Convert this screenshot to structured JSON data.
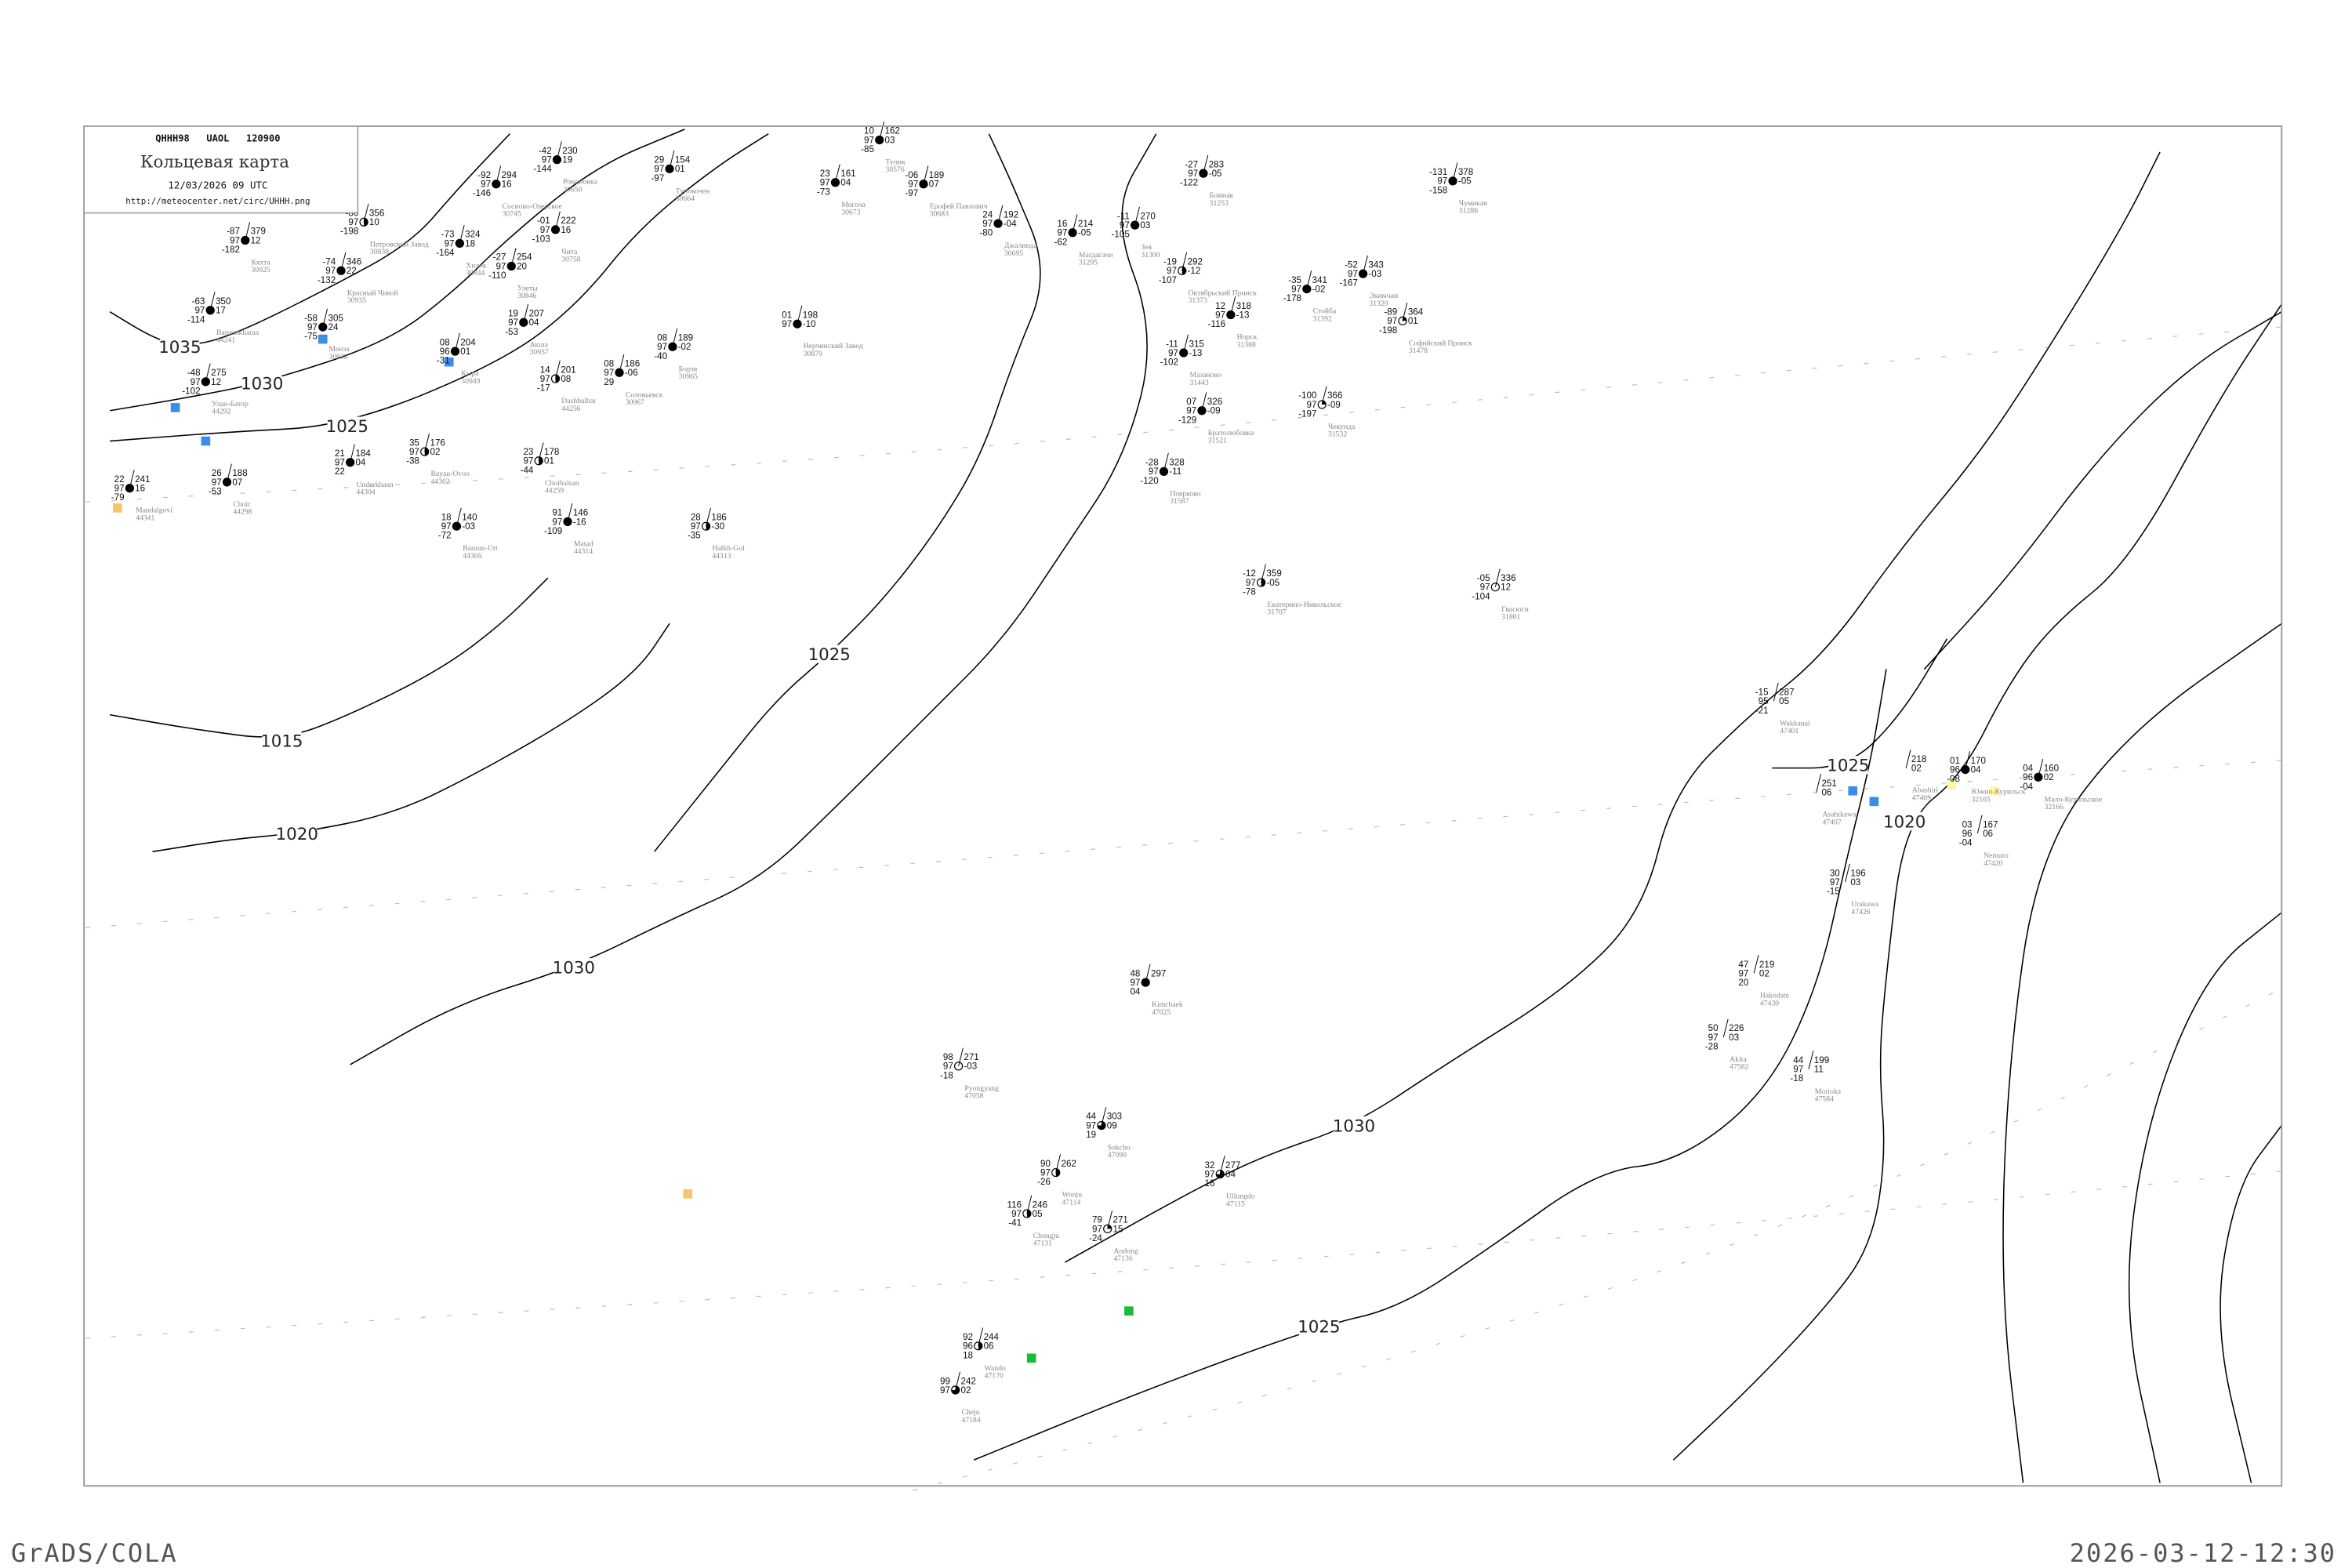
{
  "header": {
    "code": "QHHH98   UAOL   120900",
    "title": "Кольцевая карта",
    "datetime": "12/03/2026 09 UTC",
    "url": "http://meteocenter.net/circ/UHHH.png"
  },
  "footer": {
    "left": "GrADS/COLA",
    "right": "2026-03-12-12:30"
  },
  "colors": {
    "isobar": "#000000",
    "frame": "#999999",
    "station_name": "#888888",
    "snow_marker": "#3b8ee8",
    "yellow_marker": "#f7c46b",
    "pale_yellow_marker": "#fff7a0",
    "green_marker": "#1dbb3a"
  },
  "isobars": [
    {
      "label": "1035"
    },
    {
      "label": "1030"
    },
    {
      "label": "1025"
    },
    {
      "label": "1015"
    },
    {
      "label": "1020"
    },
    {
      "label": "1025"
    },
    {
      "label": "1030"
    },
    {
      "label": "1030"
    },
    {
      "label": "1025"
    },
    {
      "label": "1025"
    },
    {
      "label": "1020"
    },
    {
      "label": "1020"
    },
    {
      "label": ""
    },
    {
      "label": ""
    },
    {
      "label": ""
    }
  ],
  "stations": [
    {
      "name": "Кяхта",
      "id": "30925",
      "t": "-87",
      "vis": "97",
      "td": "-182",
      "p": "379",
      "tend": "12",
      "cover": 1
    },
    {
      "name": "Петровский Завод",
      "id": "30838",
      "t": "-86",
      "vis": "97",
      "td": "-198",
      "p": "356",
      "tend": "10",
      "cover": 0.5
    },
    {
      "name": "Хилок",
      "id": "30844",
      "t": "-73",
      "vis": "97",
      "td": "-164",
      "p": "324",
      "tend": "18",
      "cover": 1
    },
    {
      "name": "Сосново-Озерское",
      "id": "30745",
      "t": "-92",
      "vis": "97",
      "td": "-146",
      "p": "294",
      "tend": "16",
      "cover": 1
    },
    {
      "name": "Романовка",
      "id": "30650",
      "t": "-42",
      "vis": "97",
      "td": "-144",
      "p": "230",
      "tend": "19",
      "cover": 1
    },
    {
      "name": "Тупокочен",
      "id": "30664",
      "t": "29",
      "vis": "97",
      "td": "-97",
      "p": "154",
      "tend": "01",
      "cover": 1
    },
    {
      "name": "Чита",
      "id": "30758",
      "t": "-01",
      "vis": "97",
      "td": "-103",
      "p": "222",
      "tend": "16",
      "cover": 1
    },
    {
      "name": "Улеты",
      "id": "30846",
      "t": "-27",
      "vis": "97",
      "td": "-110",
      "p": "254",
      "tend": "20",
      "cover": 1
    },
    {
      "name": "Красный Чикой",
      "id": "30935",
      "t": "-74",
      "vis": "97",
      "td": "-132",
      "p": "346",
      "tend": "22",
      "cover": 1
    },
    {
      "name": "Baruunkharaa",
      "id": "44241",
      "t": "-63",
      "vis": "97",
      "td": "-114",
      "p": "350",
      "tend": "17",
      "cover": 1
    },
    {
      "name": "Менза",
      "id": "30938",
      "t": "-58",
      "vis": "97",
      "td": "-75",
      "p": "305",
      "tend": "24",
      "cover": 1
    },
    {
      "name": "Улан-Батор",
      "id": "44292",
      "t": "-48",
      "vis": "97",
      "td": "-102",
      "p": "275",
      "tend": "12",
      "cover": 1
    },
    {
      "name": "Кыра",
      "id": "30949",
      "t": "08",
      "vis": "96",
      "td": "-31",
      "p": "204",
      "tend": "01",
      "cover": 1
    },
    {
      "name": "Акша",
      "id": "30957",
      "t": "19",
      "vis": "97",
      "td": "-53",
      "p": "207",
      "tend": "04",
      "cover": 1
    },
    {
      "name": "Dashbalbar",
      "id": "44256",
      "t": "14",
      "vis": "97",
      "td": "-17",
      "p": "201",
      "tend": "08",
      "cover": 0.5
    },
    {
      "name": "Соловьевск",
      "id": "30967",
      "t": "08",
      "vis": "97",
      "td": "29",
      "p": "186",
      "tend": "-06",
      "cover": 1
    },
    {
      "name": "Борзя",
      "id": "30965",
      "t": "08",
      "vis": "97",
      "td": "-40",
      "p": "189",
      "tend": "-02",
      "cover": 1
    },
    {
      "name": "Mandalgovi",
      "id": "44341",
      "t": "22",
      "vis": "97",
      "td": "-79",
      "p": "241",
      "tend": "16",
      "cover": 1
    },
    {
      "name": "Choir",
      "id": "44298",
      "t": "26",
      "vis": "97",
      "td": "-53",
      "p": "188",
      "tend": "07",
      "cover": 1
    },
    {
      "name": "Underkhaan",
      "id": "44304",
      "t": "21",
      "vis": "97",
      "td": "22",
      "p": "184",
      "tend": "04",
      "cover": 1
    },
    {
      "name": "Bayan-Ovoo",
      "id": "44302",
      "t": "35",
      "vis": "97",
      "td": "-38",
      "p": "176",
      "tend": "02",
      "cover": 0.5
    },
    {
      "name": "Choibalsan",
      "id": "44259",
      "t": "23",
      "vis": "97",
      "td": "-44",
      "p": "178",
      "tend": "01",
      "cover": 0.5
    },
    {
      "name": "Baruun-Urt",
      "id": "44305",
      "t": "18",
      "vis": "97",
      "td": "-72",
      "p": "140",
      "tend": "-03",
      "cover": 1
    },
    {
      "name": "Matad",
      "id": "44314",
      "t": "91",
      "vis": "97",
      "td": "-109",
      "p": "146",
      "tend": "-16",
      "cover": 1
    },
    {
      "name": "Halkh-Gol",
      "id": "44313",
      "t": "28",
      "vis": "97",
      "td": "-35",
      "p": "186",
      "tend": "-30",
      "cover": 0.5
    },
    {
      "name": "Тупик",
      "id": "30576",
      "t": "10",
      "vis": "97",
      "td": "-85",
      "p": "162",
      "tend": "03",
      "cover": 1
    },
    {
      "name": "Могоча",
      "id": "30673",
      "t": "23",
      "vis": "97",
      "td": "-73",
      "p": "161",
      "tend": "04",
      "cover": 1
    },
    {
      "name": "Ерофей Павлович",
      "id": "30683",
      "t": "-06",
      "vis": "97",
      "td": "-97",
      "p": "189",
      "tend": "07",
      "cover": 1
    },
    {
      "name": "Джалинда",
      "id": "30695",
      "t": "24",
      "vis": "97",
      "td": "-80",
      "p": "192",
      "tend": "-04",
      "cover": 1
    },
    {
      "name": "Магдагачи",
      "id": "31295",
      "t": "16",
      "vis": "97",
      "td": "-62",
      "p": "214",
      "tend": "-05",
      "cover": 1
    },
    {
      "name": "Зея",
      "id": "31300",
      "t": "-11",
      "vis": "97",
      "td": "-105",
      "p": "270",
      "tend": "03",
      "cover": 1
    },
    {
      "name": "Бомнак",
      "id": "31253",
      "t": "-27",
      "vis": "97",
      "td": "-122",
      "p": "283",
      "tend": "-05",
      "cover": 1
    },
    {
      "name": "Октябрьский Прииск",
      "id": "31373",
      "t": "-19",
      "vis": "97",
      "td": "-107",
      "p": "292",
      "tend": "-12",
      "cover": 0.5
    },
    {
      "name": "Норск",
      "id": "31388",
      "t": "12",
      "vis": "97",
      "td": "-116",
      "p": "318",
      "tend": "-13",
      "cover": 1
    },
    {
      "name": "Стойба",
      "id": "31392",
      "t": "-35",
      "vis": "97",
      "td": "-178",
      "p": "341",
      "tend": "-02",
      "cover": 1
    },
    {
      "name": "Экимчан",
      "id": "31329",
      "t": "-52",
      "vis": "97",
      "td": "-167",
      "p": "343",
      "tend": "-03",
      "cover": 1
    },
    {
      "name": "Чумикан",
      "id": "31286",
      "t": "-131",
      "vis": "97",
      "td": "-158",
      "p": "378",
      "tend": "-05",
      "cover": 1
    },
    {
      "name": "Софийский Прииск",
      "id": "31478",
      "t": "-89",
      "vis": "97",
      "td": "-198",
      "p": "364",
      "tend": "01",
      "cover": 0.25
    },
    {
      "name": "Мазаново",
      "id": "31443",
      "t": "-11",
      "vis": "97",
      "td": "-102",
      "p": "315",
      "tend": "-13",
      "cover": 1
    },
    {
      "name": "Братолюбовка",
      "id": "31521",
      "t": "07",
      "vis": "97",
      "td": "-129",
      "p": "326",
      "tend": "-09",
      "cover": 1
    },
    {
      "name": "Поярково",
      "id": "31587",
      "t": "-28",
      "vis": "97",
      "td": "-120",
      "p": "328",
      "tend": "-11",
      "cover": 1
    },
    {
      "name": "Чекунда",
      "id": "31532",
      "t": "-100",
      "vis": "97",
      "td": "-197",
      "p": "366",
      "tend": "-09",
      "cover": 0.25
    },
    {
      "name": "Екатерино-Никольское",
      "id": "31707",
      "t": "-12",
      "vis": "97",
      "td": "-78",
      "p": "359",
      "tend": "-05",
      "cover": 0.5
    },
    {
      "name": "Гвасюги",
      "id": "31801",
      "t": "-05",
      "vis": "97",
      "td": "-104",
      "p": "336",
      "tend": "12",
      "cover": 0
    },
    {
      "name": "Нерчинский Завод",
      "id": "30879",
      "t": "01",
      "vis": "97",
      "td": "",
      "p": "198",
      "tend": "-10",
      "cover": 1
    },
    {
      "name": "Kimchaek",
      "id": "47025",
      "t": "48",
      "vis": "97",
      "td": "04",
      "p": "297",
      "tend": "",
      "cover": 1
    },
    {
      "name": "Ullungdo",
      "id": "47115",
      "t": "32",
      "vis": "97",
      "td": "16",
      "p": "277",
      "tend": "04",
      "cover": 0.75
    },
    {
      "name": "Pyongyang",
      "id": "47058",
      "t": "98",
      "vis": "97",
      "td": "-18",
      "p": "271",
      "tend": "-03",
      "cover": 0
    },
    {
      "name": "Chongju",
      "id": "47131",
      "t": "116",
      "vis": "97",
      "td": "-41",
      "p": "246",
      "tend": "05",
      "cover": 0.5
    },
    {
      "name": "Wonju",
      "id": "47114",
      "t": "90",
      "vis": "97",
      "td": "-26",
      "p": "262",
      "tend": "",
      "cover": 0.5
    },
    {
      "name": "Andong",
      "id": "47136",
      "t": "79",
      "vis": "97",
      "td": "-24",
      "p": "271",
      "tend": "15",
      "cover": 0.25
    },
    {
      "name": "Sokcho",
      "id": "47090",
      "t": "44",
      "vis": "97",
      "td": "19",
      "p": "303",
      "tend": "09",
      "cover": 0.75
    },
    {
      "name": "Wando",
      "id": "47170",
      "t": "92",
      "vis": "96",
      "td": "18",
      "p": "244",
      "tend": "06",
      "cover": 0.5
    },
    {
      "name": "Cheju",
      "id": "47184",
      "t": "99",
      "vis": "97",
      "td": "",
      "p": "242",
      "tend": "02",
      "cover": 0.75
    },
    {
      "name": "Южно-Курильск",
      "id": "32165",
      "t": "01",
      "vis": "96",
      "td": "-08",
      "p": "170",
      "tend": "04",
      "cover": 1
    },
    {
      "name": "Мало-Курильское",
      "id": "32166",
      "t": "04",
      "vis": "96",
      "td": "-04",
      "p": "160",
      "tend": "02",
      "cover": 1
    },
    {
      "name": "Wakkanai",
      "id": "47401",
      "t": "-15",
      "vis": "95",
      "td": "-21",
      "p": "287",
      "tend": "05",
      "cover": -1
    },
    {
      "name": "Asahikawa",
      "id": "47407",
      "t": "",
      "vis": "",
      "td": "",
      "p": "251",
      "tend": "06",
      "cover": -1
    },
    {
      "name": "Abashiri",
      "id": "47409",
      "t": "",
      "vis": "",
      "td": "",
      "p": "218",
      "tend": "02",
      "cover": -1
    },
    {
      "name": "Nemuro",
      "id": "47420",
      "t": "03",
      "vis": "96",
      "td": "-04",
      "p": "167",
      "tend": "06",
      "cover": -1
    },
    {
      "name": "Urakawa",
      "id": "47426",
      "t": "30",
      "vis": "97",
      "td": "-15",
      "p": "196",
      "tend": "03",
      "cover": -1
    },
    {
      "name": "Hakodate",
      "id": "47430",
      "t": "47",
      "vis": "97",
      "td": "20",
      "p": "219",
      "tend": "02",
      "cover": -1
    },
    {
      "name": "Akita",
      "id": "47582",
      "t": "50",
      "vis": "97",
      "td": "-28",
      "p": "226",
      "tend": "03",
      "cover": -1
    },
    {
      "name": "Morioka",
      "id": "47584",
      "t": "44",
      "vis": "97",
      "td": "-18",
      "p": "199",
      "tend": "11",
      "cover": -1
    }
  ]
}
